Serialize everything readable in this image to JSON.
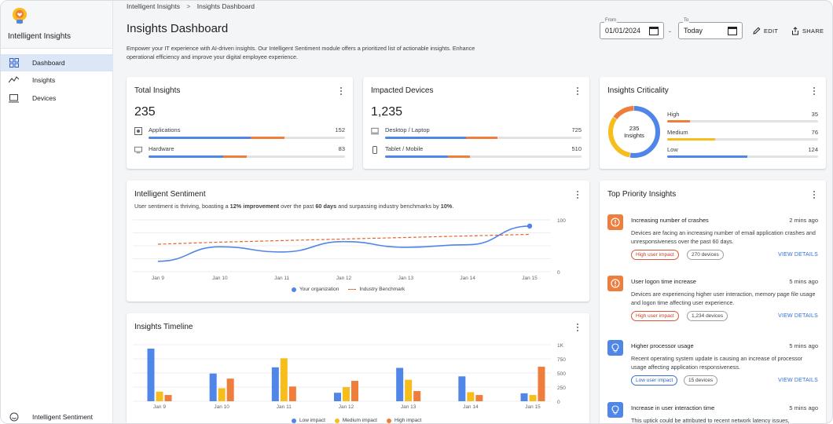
{
  "app": {
    "name": "Intelligent Insights"
  },
  "sidebar": {
    "items": [
      {
        "label": "Dashboard",
        "icon": "dashboard-icon",
        "active": true
      },
      {
        "label": "Insights",
        "icon": "trend-icon",
        "active": false
      },
      {
        "label": "Devices",
        "icon": "devices-icon",
        "active": false
      }
    ],
    "footer": {
      "label": "Intelligent Sentiment",
      "icon": "sentiment-icon"
    }
  },
  "breadcrumb": {
    "root": "Intelligent Insights",
    "separator": ">",
    "current": "Insights Dashboard"
  },
  "header": {
    "title": "Insights Dashboard",
    "description": "Empower your IT experience with AI-driven insights. Our Intelligent Sentiment module offers a prioritized list of actionable insights. Enhance operational efficiency and improve your digital employee experience.",
    "from_label": "From",
    "from_value": "01/01/2024",
    "range_dash": "-",
    "to_label": "To",
    "to_value": "Today",
    "edit_label": "EDIT",
    "share_label": "SHARE"
  },
  "colors": {
    "blue": "#4f86e8",
    "orange": "#ef7d3c",
    "yellow": "#f6bd1b",
    "accent": "#2f6fd6"
  },
  "total_insights": {
    "title": "Total Insights",
    "value": "235",
    "rows": [
      {
        "label": "Applications",
        "value": "152",
        "icon": "applications-icon",
        "blue": 0.52,
        "orange": 0.17
      },
      {
        "label": "Hardware",
        "value": "83",
        "icon": "hardware-icon",
        "blue": 0.38,
        "orange": 0.12
      }
    ]
  },
  "impacted_devices": {
    "title": "Impacted Devices",
    "value": "1,235",
    "rows": [
      {
        "label": "Desktop / Laptop",
        "value": "725",
        "icon": "desktop-icon",
        "blue": 0.41,
        "orange": 0.16
      },
      {
        "label": "Tablet / Mobile",
        "value": "510",
        "icon": "mobile-icon",
        "blue": 0.32,
        "orange": 0.11
      }
    ]
  },
  "criticality": {
    "title": "Insights Criticality",
    "center_value": "235",
    "center_label": "Insights",
    "rows": [
      {
        "label": "High",
        "value": "35",
        "color": "#ef7d3c",
        "fraction": 0.15
      },
      {
        "label": "Medium",
        "value": "76",
        "color": "#f6bd1b",
        "fraction": 0.32
      },
      {
        "label": "Low",
        "value": "124",
        "color": "#4f86e8",
        "fraction": 0.53
      }
    ]
  },
  "sentiment": {
    "title": "Intelligent Sentiment",
    "subtitle_pre": "User sentiment is thriving, boasting a ",
    "subtitle_b1": "12% improvement",
    "subtitle_mid": " over the past ",
    "subtitle_b2": "60 days",
    "subtitle_post": " and surpassing industry benchmarks by ",
    "subtitle_b3": "10%",
    "subtitle_end": "."
  },
  "timeline": {
    "title": "Insights Timeline"
  },
  "priority": {
    "title": "Top Priority Insights",
    "items": [
      {
        "title": "Increasing number of crashes",
        "time": "2 mins ago",
        "desc": "Devices are facing an increasing number of email application crashes and unresponsiveness over the past 60 days.",
        "impact": "High user impact",
        "devices": "270 devices",
        "link": "VIEW DETAILS",
        "severity": "high",
        "icon": "alert-icon"
      },
      {
        "title": "User logon time increase",
        "time": "5 mins ago",
        "desc": "Devices are experiencing higher user interaction, memory page file usage and logon time affecting user experience.",
        "impact": "High user impact",
        "devices": "1,234 devices",
        "link": "VIEW DETAILS",
        "severity": "high",
        "icon": "alert-icon"
      },
      {
        "title": "Higher processor usage",
        "time": "5 mins ago",
        "desc": "Recent operating system update is causing an increase of processor usage affecting application responsiveness.",
        "impact": "Low user impact",
        "devices": "15 devices",
        "link": "VIEW DETAILS",
        "severity": "low",
        "icon": "lightbulb-icon"
      },
      {
        "title": "Increase in user interaction time",
        "time": "5 mins ago",
        "desc": "This uptick could be attributed to recent network latency issues,",
        "severity": "low",
        "icon": "lightbulb-icon"
      }
    ]
  },
  "chart_data": [
    {
      "type": "line",
      "x": [
        "Jan 9",
        "Jan 10",
        "Jan 11",
        "Jan 12",
        "Jan 13",
        "Jan 14",
        "Jan 15"
      ],
      "ylim": [
        0,
        100
      ],
      "yticks": [
        "0",
        "100"
      ],
      "series": [
        {
          "name": "Your organization",
          "color": "#4f86e8",
          "values": [
            20,
            48,
            38,
            58,
            47,
            52,
            88
          ]
        },
        {
          "name": "Industry Benchmark",
          "color": "#e8632b",
          "dashed": true,
          "values": [
            53,
            57,
            60,
            63,
            66,
            69,
            72
          ]
        }
      ],
      "legend": "bottom"
    },
    {
      "type": "bar",
      "categories": [
        "Jan 9",
        "Jan 10",
        "Jan 11",
        "Jan 12",
        "Jan 13",
        "Jan 14",
        "Jan 15"
      ],
      "ylim": [
        0,
        1000
      ],
      "yticks": [
        "0",
        "250",
        "500",
        "750",
        "1K"
      ],
      "series": [
        {
          "name": "Low impact",
          "color": "#4f86e8",
          "values": [
            930,
            490,
            600,
            150,
            590,
            440,
            140
          ]
        },
        {
          "name": "Medium impact",
          "color": "#f6bd1b",
          "values": [
            170,
            230,
            760,
            250,
            380,
            160,
            110
          ]
        },
        {
          "name": "High impact",
          "color": "#ef7d3c",
          "values": [
            110,
            400,
            260,
            360,
            180,
            110,
            610
          ]
        }
      ],
      "legend": "bottom"
    }
  ]
}
